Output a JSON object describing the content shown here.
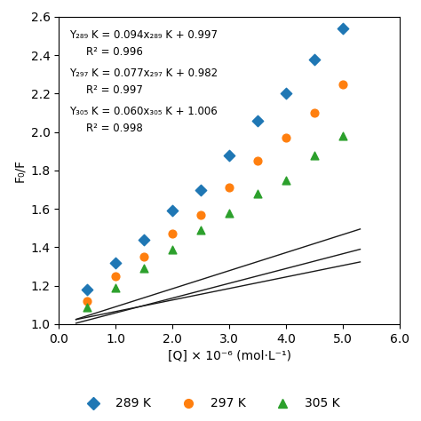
{
  "chart_data": {
    "type": "scatter",
    "x_label": "[Q] × 10⁻⁶ (mol·L⁻¹)",
    "y_label": "F₀/F",
    "xlim": [
      0.0,
      6.0
    ],
    "ylim": [
      1.0,
      2.6
    ],
    "xticks": [
      {
        "value": 0.0,
        "label": "0.0"
      },
      {
        "value": 1.0,
        "label": "1.0"
      },
      {
        "value": 2.0,
        "label": "2.0"
      },
      {
        "value": 3.0,
        "label": "3.0"
      },
      {
        "value": 4.0,
        "label": "4.0"
      },
      {
        "value": 5.0,
        "label": "5.0"
      },
      {
        "value": 6.0,
        "label": "6.0"
      }
    ],
    "yticks": [
      {
        "value": 1.0,
        "label": "1.0"
      },
      {
        "value": 1.2,
        "label": "1.2"
      },
      {
        "value": 1.4,
        "label": "1.4"
      },
      {
        "value": 1.6,
        "label": "1.6"
      },
      {
        "value": 1.8,
        "label": "1.8"
      },
      {
        "value": 2.0,
        "label": "2.0"
      },
      {
        "value": 2.2,
        "label": "2.2"
      },
      {
        "value": 2.4,
        "label": "2.4"
      },
      {
        "value": 2.6,
        "label": "2.6"
      }
    ],
    "grid": false,
    "legend": "lower center",
    "series": [
      {
        "type": "line",
        "color": "#1a1a1a",
        "x": [
          0.3,
          5.3
        ],
        "values": [
          1.0252,
          1.4952
        ]
      },
      {
        "name": "289 K",
        "type": "scatter",
        "marker": "diamond",
        "x": [
          0.5,
          1.0,
          1.5,
          2.0,
          2.5,
          3.0,
          3.5,
          4.0,
          4.5,
          5.0
        ],
        "values": [
          1.18,
          1.32,
          1.44,
          1.59,
          1.7,
          1.88,
          2.06,
          2.2,
          2.38,
          2.54
        ]
      },
      {
        "type": "line",
        "color": "#1a1a1a",
        "x": [
          0.3,
          5.3
        ],
        "values": [
          1.0051,
          1.3901
        ]
      },
      {
        "name": "297 K",
        "type": "scatter",
        "marker": "circle",
        "x": [
          0.5,
          1.0,
          1.5,
          2.0,
          2.5,
          3.0,
          3.5,
          4.0,
          4.5,
          5.0
        ],
        "values": [
          1.12,
          1.25,
          1.35,
          1.47,
          1.57,
          1.71,
          1.85,
          1.97,
          2.1,
          2.25
        ]
      },
      {
        "type": "line",
        "color": "#1a1a1a",
        "x": [
          0.3,
          5.3
        ],
        "values": [
          1.024,
          1.324
        ]
      },
      {
        "name": "305 K",
        "type": "scatter",
        "marker": "triangle",
        "x": [
          0.5,
          1.0,
          1.5,
          2.0,
          2.5,
          3.0,
          3.5,
          4.0,
          4.5,
          5.0
        ],
        "values": [
          1.09,
          1.19,
          1.29,
          1.39,
          1.49,
          1.58,
          1.68,
          1.75,
          1.88,
          1.98
        ]
      }
    ],
    "annotations": [
      "Y₂₈₉ K = 0.094x₂₈₉ K + 0.997",
      "R² = 0.996",
      "Y₂₉₇ K = 0.077x₂₉₇ K + 0.982",
      "R² = 0.997",
      "Y₃₀₅ K = 0.060x₃₀₅ K + 1.006",
      "R² = 0.998"
    ]
  }
}
